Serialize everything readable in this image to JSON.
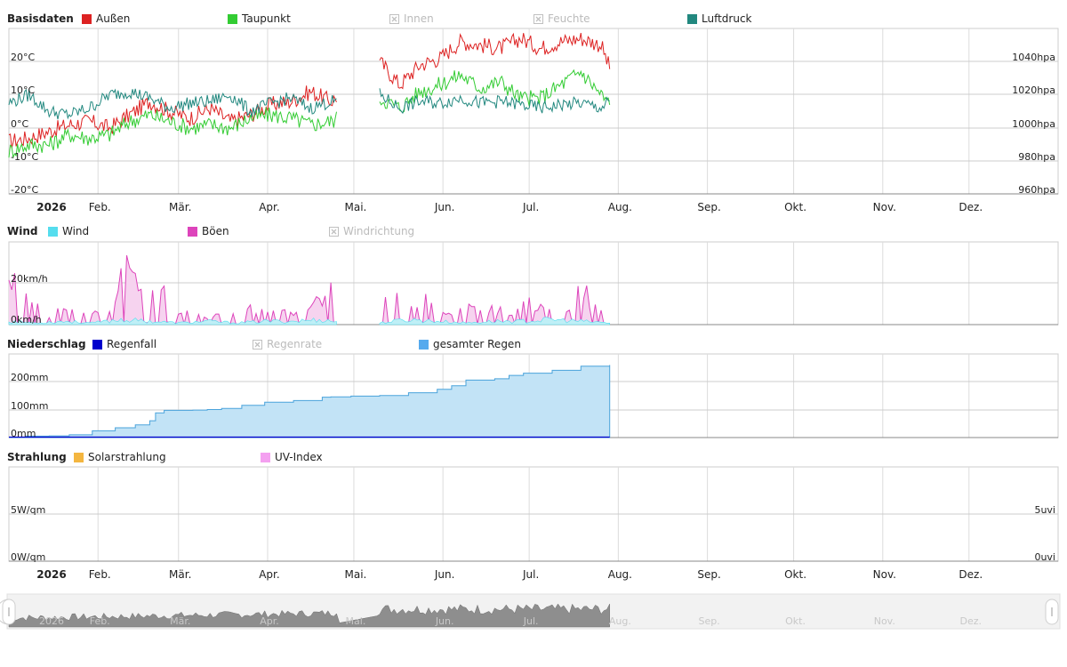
{
  "year": "2026",
  "months": [
    "Feb.",
    "Mär.",
    "Apr.",
    "Mai.",
    "Jun.",
    "Jul.",
    "Aug.",
    "Sep.",
    "Okt.",
    "Nov.",
    "Dez."
  ],
  "colors": {
    "aussen": "#dd2222",
    "taupunkt": "#33cc33",
    "luftdruck": "#22887f",
    "wind": "#55ddee",
    "boeen": "#dd44bb",
    "regenfall": "#0000cc",
    "gesamter_regen": "#55aaee",
    "solar": "#f4b640",
    "uv": "#f4a0f0",
    "disabled": "#bbbbbb"
  },
  "panels": {
    "basis": {
      "title": "Basisdaten",
      "legend": [
        {
          "label": "Außen",
          "color_key": "aussen",
          "enabled": true
        },
        {
          "label": "Taupunkt",
          "color_key": "taupunkt",
          "enabled": true
        },
        {
          "label": "Innen",
          "color_key": "disabled",
          "enabled": false
        },
        {
          "label": "Feuchte",
          "color_key": "disabled",
          "enabled": false
        },
        {
          "label": "Luftdruck",
          "color_key": "luftdruck",
          "enabled": true
        }
      ],
      "y_left_ticks": [
        "20°C",
        "10°C",
        "0°C",
        "-10°C",
        "-20°C"
      ],
      "y_right_ticks": [
        "1040hpa",
        "1020hpa",
        "1000hpa",
        "980hpa",
        "960hpa"
      ]
    },
    "wind": {
      "title": "Wind",
      "legend": [
        {
          "label": "Wind",
          "color_key": "wind",
          "enabled": true
        },
        {
          "label": "Böen",
          "color_key": "boeen",
          "enabled": true
        },
        {
          "label": "Windrichtung",
          "color_key": "disabled",
          "enabled": false
        }
      ],
      "y_left_ticks": [
        "20km/h",
        "0km/h"
      ]
    },
    "rain": {
      "title": "Niederschlag",
      "legend": [
        {
          "label": "Regenfall",
          "color_key": "regenfall",
          "enabled": true
        },
        {
          "label": "Regenrate",
          "color_key": "disabled",
          "enabled": false
        },
        {
          "label": "gesamter Regen",
          "color_key": "gesamter_regen",
          "enabled": true
        }
      ],
      "y_left_ticks": [
        "200mm",
        "100mm",
        "0mm"
      ]
    },
    "solar": {
      "title": "Strahlung",
      "legend": [
        {
          "label": "Solarstrahlung",
          "color_key": "solar",
          "enabled": true
        },
        {
          "label": "UV-Index",
          "color_key": "uv",
          "enabled": true
        }
      ],
      "y_left_ticks": [
        "5W/qm",
        "0W/qm"
      ],
      "y_right_ticks": [
        "5uvi",
        "0uvi"
      ]
    }
  },
  "navigator": {
    "year": "2026",
    "months": [
      "Feb.",
      "Mär.",
      "Apr.",
      "Mai.",
      "Jun.",
      "Jul.",
      "Aug.",
      "Sep.",
      "Okt.",
      "Nov.",
      "Dez."
    ]
  },
  "chart_data": [
    {
      "type": "line",
      "title": "Basisdaten",
      "x_unit": "day of year 2026",
      "xlim": [
        1,
        365
      ],
      "ylim_left": [
        -20,
        30
      ],
      "ylim_right": [
        960,
        1060
      ],
      "gap_days": [
        115,
        130
      ],
      "series": [
        {
          "name": "Außen",
          "axis": "left",
          "color_key": "aussen",
          "points": [
            [
              1,
              -4
            ],
            [
              8,
              -3
            ],
            [
              15,
              -1
            ],
            [
              22,
              1
            ],
            [
              29,
              2
            ],
            [
              36,
              0
            ],
            [
              43,
              4
            ],
            [
              50,
              8
            ],
            [
              57,
              5
            ],
            [
              64,
              3
            ],
            [
              71,
              6
            ],
            [
              78,
              2
            ],
            [
              85,
              4
            ],
            [
              92,
              7
            ],
            [
              99,
              8
            ],
            [
              106,
              11
            ],
            [
              113,
              8
            ],
            [
              130,
              20
            ],
            [
              137,
              13
            ],
            [
              144,
              19
            ],
            [
              151,
              21
            ],
            [
              158,
              26
            ],
            [
              165,
              25
            ],
            [
              172,
              24
            ],
            [
              179,
              27
            ],
            [
              186,
              24
            ],
            [
              193,
              26
            ],
            [
              200,
              27
            ],
            [
              207,
              25
            ],
            [
              210,
              18
            ]
          ]
        },
        {
          "name": "Taupunkt",
          "axis": "left",
          "color_key": "taupunkt",
          "points": [
            [
              1,
              -7
            ],
            [
              8,
              -5
            ],
            [
              15,
              -5
            ],
            [
              22,
              -2
            ],
            [
              29,
              -3
            ],
            [
              36,
              -2
            ],
            [
              43,
              2
            ],
            [
              50,
              4
            ],
            [
              57,
              2
            ],
            [
              64,
              0
            ],
            [
              71,
              1
            ],
            [
              78,
              0
            ],
            [
              85,
              3
            ],
            [
              92,
              4
            ],
            [
              99,
              3
            ],
            [
              106,
              1
            ],
            [
              113,
              2
            ],
            [
              130,
              9
            ],
            [
              137,
              6
            ],
            [
              144,
              11
            ],
            [
              151,
              13
            ],
            [
              158,
              16
            ],
            [
              165,
              12
            ],
            [
              172,
              14
            ],
            [
              179,
              9
            ],
            [
              186,
              9
            ],
            [
              193,
              13
            ],
            [
              200,
              17
            ],
            [
              207,
              10
            ],
            [
              210,
              7
            ]
          ]
        },
        {
          "name": "Luftdruck",
          "axis": "right",
          "color_key": "luftdruck",
          "points": [
            [
              1,
              1015
            ],
            [
              8,
              1020
            ],
            [
              15,
              1010
            ],
            [
              22,
              1008
            ],
            [
              29,
              1012
            ],
            [
              36,
              1020
            ],
            [
              43,
              1022
            ],
            [
              50,
              1018
            ],
            [
              57,
              1012
            ],
            [
              64,
              1015
            ],
            [
              71,
              1016
            ],
            [
              78,
              1020
            ],
            [
              85,
              1010
            ],
            [
              92,
              1015
            ],
            [
              99,
              1018
            ],
            [
              106,
              1012
            ],
            [
              113,
              1016
            ],
            [
              130,
              1020
            ],
            [
              137,
              1012
            ],
            [
              144,
              1016
            ],
            [
              151,
              1015
            ],
            [
              158,
              1018
            ],
            [
              165,
              1015
            ],
            [
              172,
              1016
            ],
            [
              179,
              1014
            ],
            [
              186,
              1012
            ],
            [
              193,
              1014
            ],
            [
              200,
              1015
            ],
            [
              207,
              1012
            ],
            [
              210,
              1016
            ]
          ]
        }
      ]
    },
    {
      "type": "area",
      "title": "Wind",
      "x_unit": "day of year 2026",
      "xlim": [
        1,
        365
      ],
      "ylim": [
        0,
        40
      ],
      "series": [
        {
          "name": "Wind",
          "color_key": "wind",
          "points": [
            [
              1,
              2
            ],
            [
              10,
              1
            ],
            [
              20,
              2
            ],
            [
              30,
              1
            ],
            [
              40,
              3
            ],
            [
              50,
              2
            ],
            [
              60,
              1
            ],
            [
              70,
              2
            ],
            [
              80,
              1
            ],
            [
              90,
              2
            ],
            [
              100,
              2
            ],
            [
              110,
              3
            ],
            [
              113,
              2
            ],
            [
              130,
              1
            ],
            [
              140,
              3
            ],
            [
              150,
              2
            ],
            [
              160,
              1
            ],
            [
              170,
              2
            ],
            [
              180,
              2
            ],
            [
              190,
              3
            ],
            [
              200,
              2
            ],
            [
              210,
              1
            ]
          ]
        },
        {
          "name": "Böen",
          "color_key": "boeen",
          "points": [
            [
              1,
              20
            ],
            [
              5,
              25
            ],
            [
              10,
              10
            ],
            [
              15,
              4
            ],
            [
              20,
              12
            ],
            [
              25,
              3
            ],
            [
              30,
              8
            ],
            [
              35,
              2
            ],
            [
              40,
              25
            ],
            [
              43,
              35
            ],
            [
              46,
              15
            ],
            [
              50,
              20
            ],
            [
              52,
              8
            ],
            [
              56,
              26
            ],
            [
              60,
              5
            ],
            [
              65,
              8
            ],
            [
              70,
              3
            ],
            [
              75,
              6
            ],
            [
              80,
              4
            ],
            [
              85,
              8
            ],
            [
              90,
              6
            ],
            [
              95,
              10
            ],
            [
              100,
              5
            ],
            [
              105,
              8
            ],
            [
              110,
              14
            ],
            [
              113,
              18
            ],
            [
              130,
              6
            ],
            [
              133,
              15
            ],
            [
              136,
              18
            ],
            [
              140,
              10
            ],
            [
              145,
              16
            ],
            [
              150,
              8
            ],
            [
              155,
              4
            ],
            [
              160,
              12
            ],
            [
              165,
              6
            ],
            [
              170,
              10
            ],
            [
              175,
              4
            ],
            [
              180,
              16
            ],
            [
              185,
              8
            ],
            [
              190,
              12
            ],
            [
              195,
              6
            ],
            [
              200,
              20
            ],
            [
              205,
              9
            ],
            [
              210,
              4
            ]
          ]
        }
      ]
    },
    {
      "type": "area",
      "title": "Niederschlag",
      "x_unit": "day of year 2026",
      "xlim": [
        1,
        365
      ],
      "ylim": [
        0,
        300
      ],
      "series": [
        {
          "name": "gesamter Regen",
          "color_key": "gesamter_regen",
          "points": [
            [
              1,
              0
            ],
            [
              7,
              5
            ],
            [
              15,
              6
            ],
            [
              22,
              10
            ],
            [
              30,
              24
            ],
            [
              38,
              35
            ],
            [
              45,
              45
            ],
            [
              50,
              60
            ],
            [
              52,
              88
            ],
            [
              55,
              97
            ],
            [
              65,
              98
            ],
            [
              70,
              100
            ],
            [
              75,
              104
            ],
            [
              82,
              115
            ],
            [
              90,
              126
            ],
            [
              100,
              132
            ],
            [
              110,
              144
            ],
            [
              113,
              145
            ],
            [
              120,
              148
            ],
            [
              130,
              150
            ],
            [
              140,
              160
            ],
            [
              150,
              172
            ],
            [
              155,
              185
            ],
            [
              160,
              205
            ],
            [
              170,
              210
            ],
            [
              175,
              222
            ],
            [
              180,
              230
            ],
            [
              190,
              240
            ],
            [
              200,
              255
            ],
            [
              210,
              259
            ]
          ]
        },
        {
          "name": "Regenfall",
          "color_key": "regenfall",
          "points": [
            [
              1,
              0
            ],
            [
              50,
              1
            ],
            [
              100,
              0
            ],
            [
              113,
              1
            ],
            [
              130,
              0
            ],
            [
              180,
              3
            ],
            [
              210,
              0
            ]
          ]
        }
      ]
    },
    {
      "type": "line",
      "title": "Strahlung",
      "x_unit": "day of year 2026",
      "xlim": [
        1,
        365
      ],
      "ylim_left": [
        0,
        10
      ],
      "ylim_right": [
        0,
        10
      ],
      "series": [
        {
          "name": "Solarstrahlung",
          "color_key": "solar",
          "points": []
        },
        {
          "name": "UV-Index",
          "color_key": "uv",
          "points": []
        }
      ]
    }
  ]
}
